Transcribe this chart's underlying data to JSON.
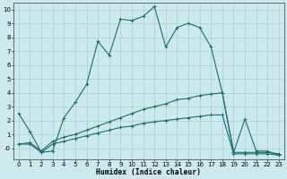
{
  "xlabel": "Humidex (Indice chaleur)",
  "bg_color": "#cce9ed",
  "grid_color": "#aacdd4",
  "line_color": "#1a6e6a",
  "xlim": [
    -0.5,
    23.5
  ],
  "ylim": [
    -0.8,
    10.5
  ],
  "xticks": [
    0,
    1,
    2,
    3,
    4,
    5,
    6,
    7,
    8,
    9,
    10,
    11,
    12,
    13,
    14,
    15,
    16,
    17,
    18,
    19,
    20,
    21,
    22,
    23
  ],
  "yticks": [
    0,
    1,
    2,
    3,
    4,
    5,
    6,
    7,
    8,
    9,
    10
  ],
  "s1_x": [
    0,
    1,
    2,
    3,
    4,
    5,
    6,
    7,
    8,
    9,
    10,
    11,
    12,
    13,
    14,
    15,
    16,
    17,
    18,
    19,
    20,
    21,
    22,
    23
  ],
  "s1_y": [
    2.5,
    1.2,
    -0.3,
    -0.2,
    2.2,
    3.3,
    4.6,
    7.7,
    6.7,
    9.3,
    9.2,
    9.5,
    10.2,
    7.3,
    8.7,
    9.0,
    8.7,
    7.3,
    4.0,
    -0.3,
    2.1,
    -0.2,
    -0.2,
    -0.5
  ],
  "s2_x": [
    0,
    1,
    2,
    3,
    4,
    5,
    6,
    7,
    8,
    9,
    10,
    11,
    12,
    13,
    14,
    15,
    16,
    17,
    18,
    19,
    20,
    21,
    22,
    23
  ],
  "s2_y": [
    0.3,
    0.4,
    -0.2,
    0.5,
    0.8,
    1.0,
    1.3,
    1.6,
    1.9,
    2.2,
    2.5,
    2.8,
    3.0,
    3.2,
    3.5,
    3.6,
    3.8,
    3.9,
    4.0,
    -0.3,
    -0.3,
    -0.3,
    -0.3,
    -0.4
  ],
  "s3_x": [
    0,
    1,
    2,
    3,
    4,
    5,
    6,
    7,
    8,
    9,
    10,
    11,
    12,
    13,
    14,
    15,
    16,
    17,
    18,
    19,
    20,
    21,
    22,
    23
  ],
  "s3_y": [
    0.3,
    0.3,
    -0.3,
    0.3,
    0.5,
    0.7,
    0.9,
    1.1,
    1.3,
    1.5,
    1.6,
    1.8,
    1.9,
    2.0,
    2.1,
    2.2,
    2.3,
    2.4,
    2.4,
    -0.4,
    -0.4,
    -0.4,
    -0.4,
    -0.5
  ]
}
